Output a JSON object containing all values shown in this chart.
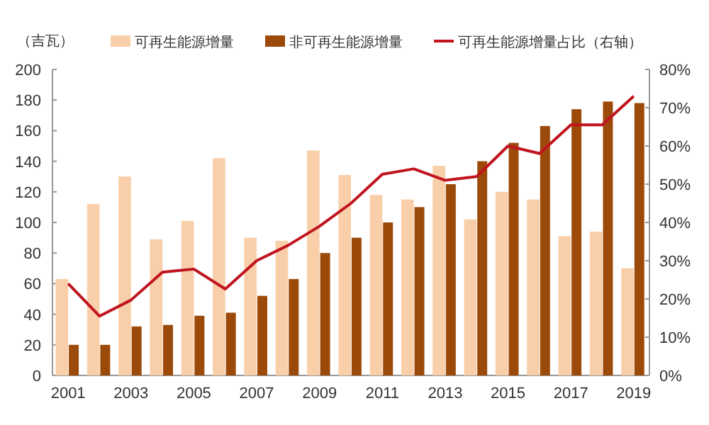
{
  "chart_data": {
    "type": "bar",
    "ylabel": "（吉瓦）",
    "categories": [
      "2001",
      null,
      "2003",
      null,
      "2005",
      null,
      "2007",
      null,
      "2009",
      null,
      "2011",
      null,
      "2013",
      null,
      "2015",
      null,
      "2017",
      null,
      "2019"
    ],
    "series": [
      {
        "name": "可再生能源增量",
        "color": "#f9cfaa",
        "values": [
          63,
          112,
          130,
          89,
          101,
          142,
          90,
          88,
          147,
          131,
          118,
          115,
          137,
          102,
          120,
          115,
          91,
          94,
          70
        ]
      },
      {
        "name": "非可再生能源增量",
        "color": "#9c4a0a",
        "values": [
          20,
          20,
          32,
          33,
          39,
          41,
          52,
          63,
          80,
          90,
          100,
          110,
          125,
          140,
          152,
          163,
          174,
          179,
          178
        ]
      },
      {
        "name": "可再生能源增量占比（右轴）",
        "type": "line",
        "axis": "y2",
        "color": "#c0141f",
        "values": [
          24,
          15.5,
          19.7,
          27,
          27.8,
          22.6,
          30,
          34,
          39,
          45,
          52.6,
          54,
          51,
          52,
          60,
          58,
          65.5,
          65.5,
          73
        ]
      }
    ],
    "ylim": [
      0,
      200
    ],
    "yticks": [
      0,
      20,
      40,
      60,
      80,
      100,
      120,
      140,
      160,
      180,
      200
    ],
    "y2lim": [
      0,
      80
    ],
    "y2ticks": [
      {
        "value": 0,
        "label": "0%"
      },
      {
        "value": 10,
        "label": "10%"
      },
      {
        "value": 20,
        "label": "20%"
      },
      {
        "value": 30,
        "label": "30%"
      },
      {
        "value": 40,
        "label": "40%"
      },
      {
        "value": 50,
        "label": "50%"
      },
      {
        "value": 60,
        "label": "60%"
      },
      {
        "value": 70,
        "label": "70%"
      },
      {
        "value": 80,
        "label": "80%"
      }
    ],
    "legend": "top",
    "grid": false
  }
}
